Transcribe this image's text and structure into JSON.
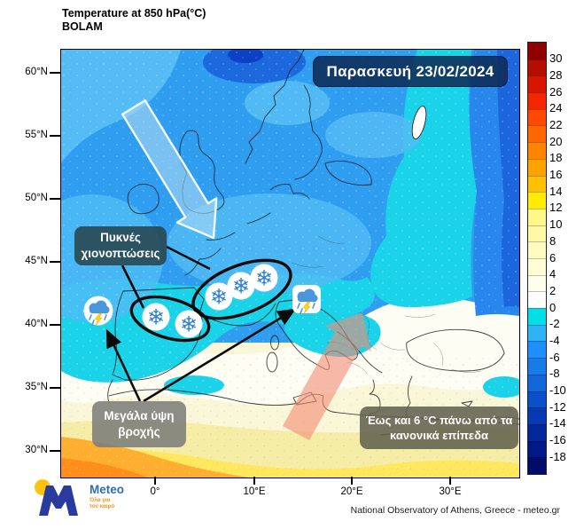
{
  "header": {
    "title": "Temperature at 850 hPa(°C)",
    "model": "BOLAM"
  },
  "date_badge": {
    "text": "Παρασκευή 23/02/2024"
  },
  "axes": {
    "lat_labels": [
      "60°N",
      "55°N",
      "50°N",
      "45°N",
      "40°N",
      "35°N",
      "30°N"
    ],
    "lon_labels": [
      "0°",
      "10°E",
      "20°E",
      "30°E"
    ]
  },
  "annotations": {
    "snow": {
      "line1": "Πυκνές",
      "line2": "χιονοπτώσεις"
    },
    "rain": {
      "line1": "Μεγάλα ύψη",
      "line2": "βροχής"
    },
    "warm": {
      "line1": "Έως και 6 °C πάνω από τα",
      "line2": "κανονικά επίπεδα"
    }
  },
  "colorbar": {
    "tick_values": [
      30,
      28,
      26,
      24,
      22,
      20,
      18,
      16,
      14,
      12,
      10,
      8,
      6,
      4,
      2,
      0,
      -2,
      -4,
      -6,
      -8,
      -10,
      -12,
      -14,
      -16,
      -18
    ],
    "segment_colors_top_to_bottom": [
      "#8f0000",
      "#b50d00",
      "#d81600",
      "#f32600",
      "#ff4800",
      "#ff6600",
      "#ff8400",
      "#ffa200",
      "#ffc100",
      "#ffec00",
      "#fff788",
      "#fff9a6",
      "#fffbc0",
      "#fffcd6",
      "#fffeea",
      "#ffffff",
      "#00dfe6",
      "#2fb3f6",
      "#1e8fff",
      "#187ce8",
      "#1166d9",
      "#0b50c8",
      "#0639b2",
      "#03289e",
      "#021788",
      "#010c6a"
    ]
  },
  "palette": {
    "badge_bg": "#0e2c56",
    "snow_box_bg": "#2a4a54",
    "rain_box_bg": "#7d7d7a",
    "warm_box_bg": "#626250",
    "cold_arrow": "#aad7f3",
    "warm_arrow": "#f48a74",
    "snowflake_blue": "#2e7fd2",
    "rain_cloud_blue": "#4a96dd",
    "lightning_yellow": "#ffd21f",
    "logo_m_blue": "#2b3a9e",
    "logo_dot_yellow": "#ffc20e",
    "logo_text_blue": "#2e6db4",
    "logo_tagline_orange": "#f7941d"
  },
  "footer": {
    "attribution": "National Observatory of Athens, Greece - meteo.gr"
  },
  "logo": {
    "brand": "Meteo",
    "tagline_line1": "Όλα για",
    "tagline_line2": "τον καιρό"
  }
}
